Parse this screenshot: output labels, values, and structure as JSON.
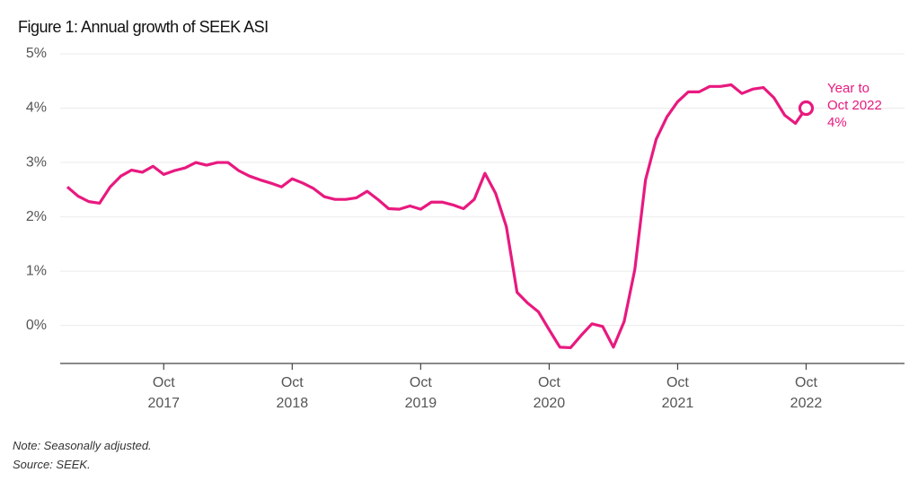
{
  "chart_data": {
    "type": "line",
    "title": "Figure 1: Annual growth of SEEK ASI",
    "x": [
      "2017-01",
      "2017-02",
      "2017-03",
      "2017-04",
      "2017-05",
      "2017-06",
      "2017-07",
      "2017-08",
      "2017-09",
      "2017-10",
      "2017-11",
      "2017-12",
      "2018-01",
      "2018-02",
      "2018-03",
      "2018-04",
      "2018-05",
      "2018-06",
      "2018-07",
      "2018-08",
      "2018-09",
      "2018-10",
      "2018-11",
      "2018-12",
      "2019-01",
      "2019-02",
      "2019-03",
      "2019-04",
      "2019-05",
      "2019-06",
      "2019-07",
      "2019-08",
      "2019-09",
      "2019-10",
      "2019-11",
      "2019-12",
      "2020-01",
      "2020-02",
      "2020-03",
      "2020-04",
      "2020-05",
      "2020-06",
      "2020-07",
      "2020-08",
      "2020-09",
      "2020-10",
      "2020-11",
      "2020-12",
      "2021-01",
      "2021-02",
      "2021-03",
      "2021-04",
      "2021-05",
      "2021-06",
      "2021-07",
      "2021-08",
      "2021-09",
      "2021-10",
      "2021-11",
      "2021-12",
      "2022-01",
      "2022-02",
      "2022-03",
      "2022-04",
      "2022-05",
      "2022-06",
      "2022-07",
      "2022-08",
      "2022-09",
      "2022-10"
    ],
    "series": [
      {
        "name": "SEEK ASI annual growth",
        "color": "#e8197f",
        "values": [
          2.55,
          2.38,
          2.28,
          2.25,
          2.55,
          2.75,
          2.86,
          2.82,
          2.93,
          2.78,
          2.85,
          2.9,
          3.0,
          2.95,
          3.0,
          3.0,
          2.85,
          2.75,
          2.68,
          2.62,
          2.55,
          2.7,
          2.62,
          2.52,
          2.37,
          2.32,
          2.32,
          2.35,
          2.47,
          2.32,
          2.15,
          2.14,
          2.2,
          2.14,
          2.27,
          2.27,
          2.22,
          2.15,
          2.32,
          2.8,
          2.43,
          1.82,
          0.61,
          0.41,
          0.25,
          -0.08,
          -0.4,
          -0.41,
          -0.18,
          0.03,
          -0.02,
          -0.4,
          0.07,
          1.03,
          2.68,
          3.43,
          3.84,
          4.12,
          4.3,
          4.3,
          4.4,
          4.4,
          4.43,
          4.27,
          4.35,
          4.38,
          4.19,
          3.87,
          3.72,
          4
        ]
      }
    ],
    "ylim": [
      -0.7,
      5
    ],
    "yticks": [
      {
        "value": 0,
        "label": "0%"
      },
      {
        "value": 1,
        "label": "1%"
      },
      {
        "value": 2,
        "label": "2%"
      },
      {
        "value": 3,
        "label": "3%"
      },
      {
        "value": 4,
        "label": "4%"
      },
      {
        "value": 5,
        "label": "5%"
      }
    ],
    "xticks": [
      {
        "value": "2017-10",
        "label": "Oct\n2017"
      },
      {
        "value": "2018-10",
        "label": "Oct\n2018"
      },
      {
        "value": "2019-10",
        "label": "Oct\n2019"
      },
      {
        "value": "2020-10",
        "label": "Oct\n2020"
      },
      {
        "value": "2021-10",
        "label": "Oct\n2021"
      },
      {
        "value": "2022-10",
        "label": "Oct\n2022"
      }
    ],
    "grid": true,
    "annotation": "Year to\nOct 2022\n4%",
    "notes": [
      "Note: Seasonally adjusted.",
      "Source: SEEK."
    ]
  }
}
